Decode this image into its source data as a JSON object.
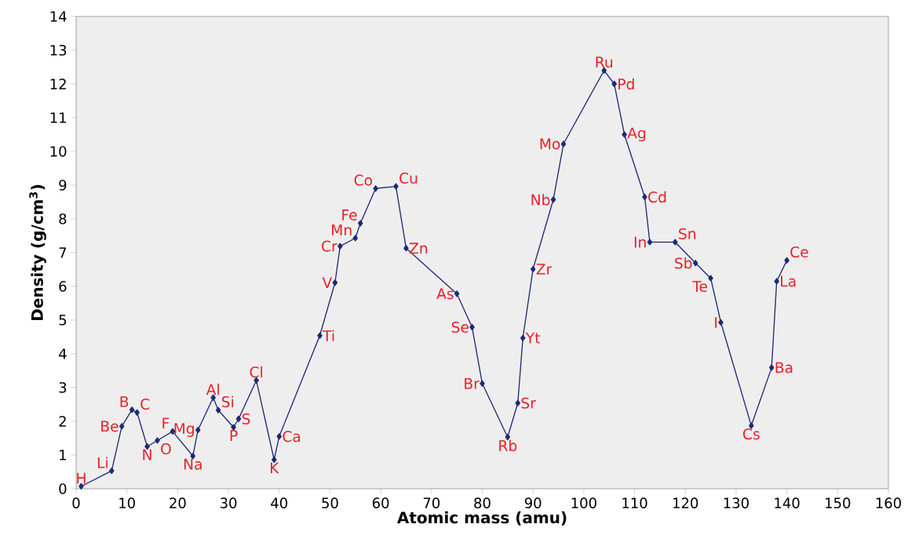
{
  "chart_data": {
    "type": "line",
    "xlabel": "Atomic mass (amu)",
    "ylabel": "Density (g/cm$^{3}$)",
    "x": [
      1,
      7,
      9,
      11,
      12,
      14,
      16,
      19,
      23,
      24,
      27,
      28,
      31,
      32,
      35.5,
      39,
      40,
      48,
      51,
      52,
      55,
      56,
      59,
      63,
      65,
      75,
      78,
      80,
      85,
      87,
      88,
      90,
      94,
      96,
      104,
      106,
      108,
      112,
      113,
      118,
      122,
      125,
      127,
      133,
      137,
      138,
      140
    ],
    "values": [
      0.07,
      0.53,
      1.85,
      2.34,
      2.26,
      1.25,
      1.43,
      1.7,
      0.97,
      1.74,
      2.7,
      2.33,
      1.82,
      2.07,
      3.21,
      0.86,
      1.55,
      4.54,
      6.11,
      7.19,
      7.43,
      7.87,
      8.9,
      8.96,
      7.13,
      5.78,
      4.79,
      3.12,
      1.53,
      2.54,
      4.47,
      6.51,
      8.57,
      10.22,
      12.4,
      12.0,
      10.5,
      8.65,
      7.31,
      7.31,
      6.69,
      6.24,
      4.93,
      1.87,
      3.59,
      6.15,
      6.77
    ],
    "color": "#1f2a78",
    "marker": "diamond",
    "line_style": "solid",
    "xlim": [
      0,
      160
    ],
    "ylim": [
      0,
      14
    ],
    "xticks": [
      0,
      10,
      20,
      30,
      40,
      50,
      60,
      70,
      80,
      90,
      100,
      110,
      120,
      130,
      140,
      150,
      160
    ],
    "yticks": [
      0,
      1,
      2,
      3,
      4,
      5,
      6,
      7,
      8,
      9,
      10,
      11,
      12,
      13,
      14
    ],
    "annotations": [
      {
        "text": "H",
        "x": 1,
        "y": 0.07
      },
      {
        "text": "Li",
        "x": 7,
        "y": 0.53
      },
      {
        "text": "Be",
        "x": 9,
        "y": 1.85
      },
      {
        "text": "B",
        "x": 11,
        "y": 2.34
      },
      {
        "text": "C",
        "x": 12,
        "y": 2.26
      },
      {
        "text": "N",
        "x": 14,
        "y": 1.25
      },
      {
        "text": "O",
        "x": 16,
        "y": 1.43
      },
      {
        "text": "F",
        "x": 19,
        "y": 1.7
      },
      {
        "text": "Na",
        "x": 23,
        "y": 0.97
      },
      {
        "text": "Mg",
        "x": 24,
        "y": 1.74
      },
      {
        "text": "Al",
        "x": 27,
        "y": 2.7
      },
      {
        "text": "Si",
        "x": 28,
        "y": 2.33
      },
      {
        "text": "P",
        "x": 31,
        "y": 1.82
      },
      {
        "text": "S",
        "x": 32,
        "y": 2.07
      },
      {
        "text": "Cl",
        "x": 35.5,
        "y": 3.21
      },
      {
        "text": "K",
        "x": 39,
        "y": 0.86
      },
      {
        "text": "Ca",
        "x": 40,
        "y": 1.55
      },
      {
        "text": "Ti",
        "x": 48,
        "y": 4.54
      },
      {
        "text": "V",
        "x": 51,
        "y": 6.11
      },
      {
        "text": "Cr",
        "x": 52,
        "y": 7.19
      },
      {
        "text": "Mn",
        "x": 55,
        "y": 7.43
      },
      {
        "text": "Fe",
        "x": 56,
        "y": 7.87
      },
      {
        "text": "Co",
        "x": 59,
        "y": 8.9
      },
      {
        "text": "Cu",
        "x": 63,
        "y": 8.96
      },
      {
        "text": "Zn",
        "x": 65,
        "y": 7.13
      },
      {
        "text": "As",
        "x": 75,
        "y": 5.78
      },
      {
        "text": "Se",
        "x": 78,
        "y": 4.79
      },
      {
        "text": "Br",
        "x": 80,
        "y": 3.12
      },
      {
        "text": "Rb",
        "x": 85,
        "y": 1.53
      },
      {
        "text": "Sr",
        "x": 87,
        "y": 2.54
      },
      {
        "text": "Yt",
        "x": 88,
        "y": 4.47
      },
      {
        "text": "Zr",
        "x": 90,
        "y": 6.51
      },
      {
        "text": "Nb",
        "x": 94,
        "y": 8.57
      },
      {
        "text": "Mo",
        "x": 96,
        "y": 10.22
      },
      {
        "text": "Ru",
        "x": 104,
        "y": 12.4
      },
      {
        "text": "Pd",
        "x": 106,
        "y": 12.0
      },
      {
        "text": "Ag",
        "x": 108,
        "y": 10.5
      },
      {
        "text": "Cd",
        "x": 112,
        "y": 8.65
      },
      {
        "text": "In",
        "x": 113,
        "y": 7.31
      },
      {
        "text": "Sn",
        "x": 118,
        "y": 7.31
      },
      {
        "text": "Sb",
        "x": 122,
        "y": 6.69
      },
      {
        "text": "Te",
        "x": 125,
        "y": 6.24
      },
      {
        "text": "I",
        "x": 127,
        "y": 4.93
      },
      {
        "text": "Cs",
        "x": 133,
        "y": 1.87
      },
      {
        "text": "Ba",
        "x": 137,
        "y": 3.59
      },
      {
        "text": "La",
        "x": 138,
        "y": 6.15
      },
      {
        "text": "Ce",
        "x": 140,
        "y": 6.77
      }
    ]
  }
}
